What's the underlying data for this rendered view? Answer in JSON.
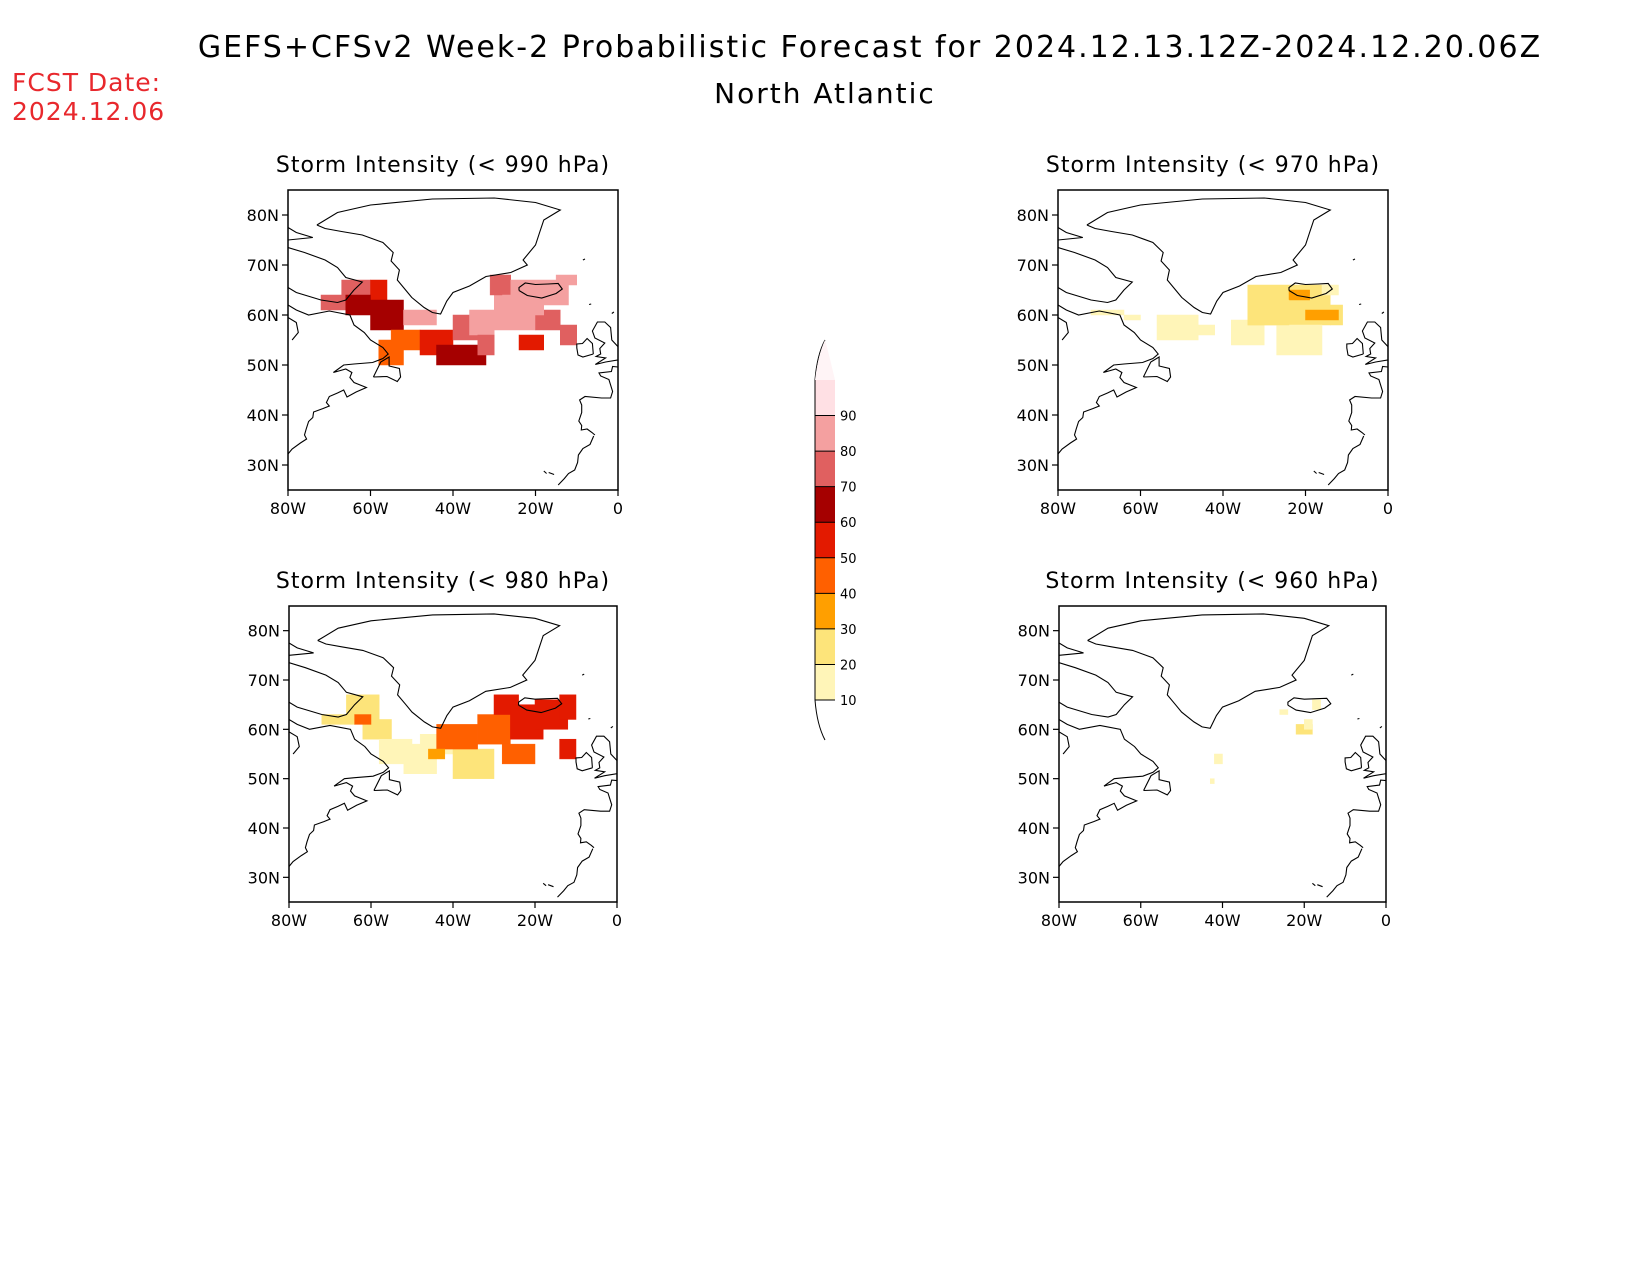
{
  "header": {
    "title": "GEFS+CFSv2 Week-2 Probabilistic Forecast for 2024.12.13.12Z-2024.12.20.06Z",
    "subtitle": "North Atlantic",
    "fcst_label": "FCST Date:",
    "fcst_date": "2024.12.06"
  },
  "axes": {
    "lon_labels": [
      "80W",
      "60W",
      "40W",
      "20W",
      "0"
    ],
    "lat_labels": [
      "80N",
      "70N",
      "60N",
      "50N",
      "40N",
      "30N"
    ],
    "lon_values": [
      -80,
      -60,
      -40,
      -20,
      0
    ],
    "lat_values": [
      80,
      70,
      60,
      50,
      40,
      30
    ],
    "lon_range": [
      -80,
      0
    ],
    "lat_range": [
      25,
      85
    ]
  },
  "colorbar": {
    "levels": [
      10,
      20,
      30,
      40,
      50,
      60,
      70,
      80,
      90
    ],
    "labels": [
      "10",
      "20",
      "30",
      "40",
      "50",
      "60",
      "70",
      "80",
      "90"
    ],
    "colors": [
      "#fff5b8",
      "#fde47a",
      "#ff9f00",
      "#ff6000",
      "#e31a00",
      "#a50000",
      "#e06060",
      "#f4a0a0",
      "#ffe0e4"
    ]
  },
  "panels": [
    {
      "title": "Storm Intensity (< 990 hPa)",
      "cells": [
        [
          -72,
          61,
          -64,
          64,
          70
        ],
        [
          -67,
          64,
          -60,
          67,
          75
        ],
        [
          -60,
          63,
          -56,
          67,
          50
        ],
        [
          -66,
          60,
          -60,
          64,
          65
        ],
        [
          -60,
          57,
          -52,
          63,
          65
        ],
        [
          -52,
          58,
          -44,
          61,
          80
        ],
        [
          -55,
          53,
          -48,
          57,
          45
        ],
        [
          -58,
          50,
          -52,
          55,
          40
        ],
        [
          -48,
          52,
          -40,
          57,
          55
        ],
        [
          -44,
          50,
          -32,
          54,
          65
        ],
        [
          -40,
          55,
          -34,
          60,
          70
        ],
        [
          -36,
          56,
          -30,
          61,
          80
        ],
        [
          -30,
          57,
          -20,
          64,
          85
        ],
        [
          -31,
          64,
          -26,
          68,
          70
        ],
        [
          -26,
          62,
          -12,
          67,
          85
        ],
        [
          -15,
          66,
          -10,
          68,
          85
        ],
        [
          -20,
          57,
          -14,
          61,
          75
        ],
        [
          -24,
          53,
          -18,
          56,
          55
        ],
        [
          -14,
          54,
          -10,
          58,
          75
        ],
        [
          -34,
          52,
          -30,
          56,
          75
        ],
        [
          -28,
          60,
          -18,
          64,
          80
        ]
      ]
    },
    {
      "title": "Storm Intensity (< 970 hPa)",
      "cells": [
        [
          -72,
          60,
          -64,
          61,
          10
        ],
        [
          -64,
          59,
          -60,
          60,
          10
        ],
        [
          -56,
          55,
          -46,
          60,
          15
        ],
        [
          -48,
          56,
          -42,
          58,
          15
        ],
        [
          -38,
          54,
          -30,
          59,
          15
        ],
        [
          -34,
          58,
          -14,
          66,
          20
        ],
        [
          -27,
          52,
          -16,
          58,
          15
        ],
        [
          -14,
          58,
          -11,
          62,
          25
        ],
        [
          -20,
          59,
          -12,
          61,
          35
        ],
        [
          -24,
          63,
          -19,
          65,
          30
        ],
        [
          -16,
          64,
          -12,
          66,
          15
        ],
        [
          -34,
          58,
          -24,
          63,
          20
        ]
      ]
    },
    {
      "title": "Storm Intensity (< 980 hPa)",
      "cells": [
        [
          -72,
          61,
          -64,
          63,
          20
        ],
        [
          -66,
          62,
          -58,
          67,
          25
        ],
        [
          -62,
          58,
          -55,
          62,
          25
        ],
        [
          -58,
          53,
          -50,
          58,
          15
        ],
        [
          -52,
          51,
          -44,
          57,
          15
        ],
        [
          -48,
          55,
          -40,
          59,
          15
        ],
        [
          -40,
          50,
          -30,
          56,
          20
        ],
        [
          -44,
          56,
          -34,
          61,
          40
        ],
        [
          -34,
          57,
          -26,
          63,
          45
        ],
        [
          -30,
          63,
          -24,
          67,
          50
        ],
        [
          -26,
          58,
          -18,
          65,
          55
        ],
        [
          -20,
          60,
          -12,
          66,
          55
        ],
        [
          -14,
          62,
          -10,
          67,
          55
        ],
        [
          -28,
          53,
          -20,
          57,
          40
        ],
        [
          -14,
          54,
          -10,
          58,
          50
        ],
        [
          -64,
          61,
          -60,
          63,
          40
        ],
        [
          -46,
          54,
          -42,
          56,
          30
        ]
      ]
    },
    {
      "title": "Storm Intensity (< 960 hPa)",
      "cells": [
        [
          -42,
          53,
          -40,
          55,
          15
        ],
        [
          -43,
          49,
          -42,
          50,
          15
        ],
        [
          -22,
          59,
          -18,
          61,
          20
        ],
        [
          -20,
          60,
          -18,
          62,
          15
        ],
        [
          -26,
          63,
          -24,
          64,
          10
        ],
        [
          -18,
          64,
          -16,
          66,
          15
        ]
      ]
    }
  ]
}
